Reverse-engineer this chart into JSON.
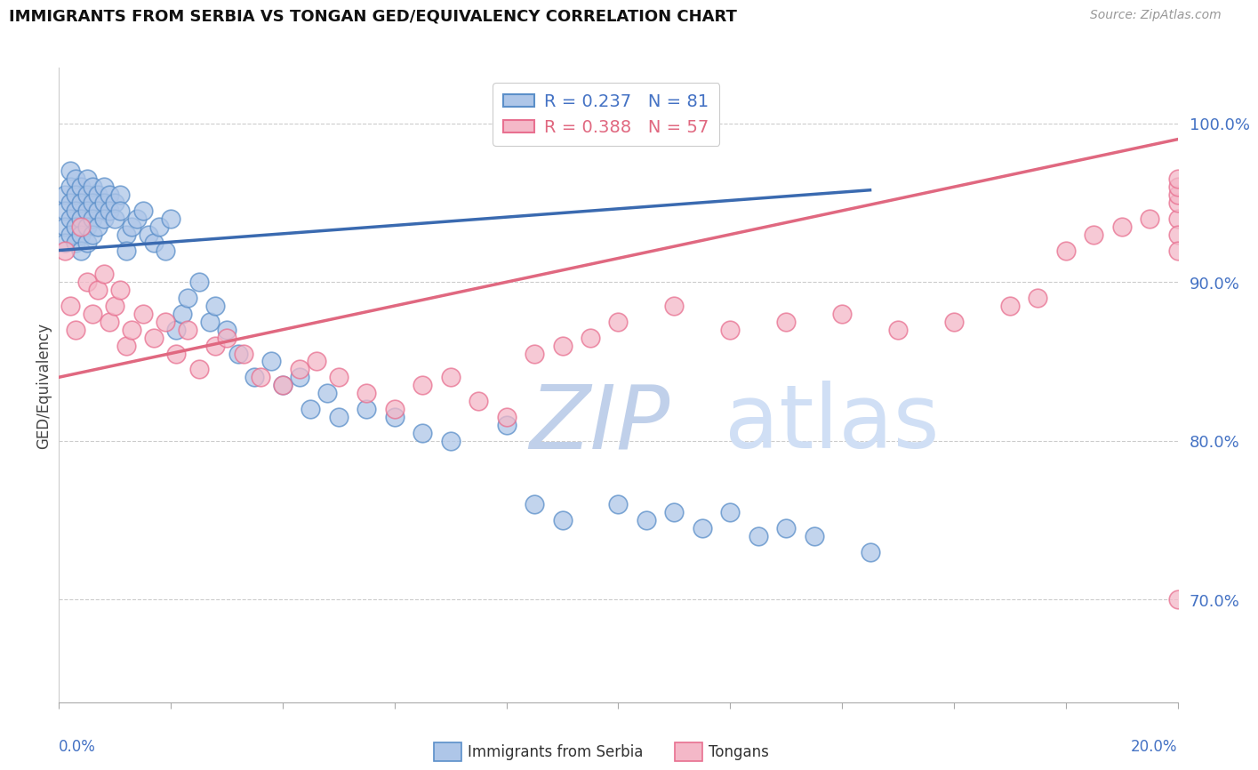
{
  "title": "IMMIGRANTS FROM SERBIA VS TONGAN GED/EQUIVALENCY CORRELATION CHART",
  "source": "Source: ZipAtlas.com",
  "ylabel": "GED/Equivalency",
  "ytick_labels": [
    "70.0%",
    "80.0%",
    "90.0%",
    "100.0%"
  ],
  "ytick_values": [
    0.7,
    0.8,
    0.9,
    1.0
  ],
  "xlim": [
    0.0,
    0.2
  ],
  "ylim": [
    0.635,
    1.035
  ],
  "legend_blue_r": "0.237",
  "legend_blue_n": "81",
  "legend_pink_r": "0.388",
  "legend_pink_n": "57",
  "color_blue_face": "#aec6e8",
  "color_pink_face": "#f4b8c8",
  "color_blue_edge": "#5b8fc9",
  "color_pink_edge": "#e87090",
  "color_blue_line": "#3a6ab0",
  "color_pink_line": "#e06880",
  "color_blue_label": "#4472c4",
  "color_pink_label": "#e06880",
  "watermark_zip_color": "#c5d5ee",
  "watermark_atlas_color": "#d0dff5",
  "serbia_x": [
    0.001,
    0.001,
    0.001,
    0.001,
    0.002,
    0.002,
    0.002,
    0.002,
    0.002,
    0.003,
    0.003,
    0.003,
    0.003,
    0.003,
    0.004,
    0.004,
    0.004,
    0.004,
    0.004,
    0.005,
    0.005,
    0.005,
    0.005,
    0.005,
    0.006,
    0.006,
    0.006,
    0.006,
    0.007,
    0.007,
    0.007,
    0.008,
    0.008,
    0.008,
    0.009,
    0.009,
    0.01,
    0.01,
    0.011,
    0.011,
    0.012,
    0.012,
    0.013,
    0.014,
    0.015,
    0.016,
    0.017,
    0.018,
    0.019,
    0.02,
    0.021,
    0.022,
    0.023,
    0.025,
    0.027,
    0.028,
    0.03,
    0.032,
    0.035,
    0.038,
    0.04,
    0.043,
    0.045,
    0.048,
    0.05,
    0.055,
    0.06,
    0.065,
    0.07,
    0.08,
    0.085,
    0.09,
    0.1,
    0.105,
    0.11,
    0.115,
    0.12,
    0.125,
    0.13,
    0.135,
    0.145
  ],
  "serbia_y": [
    0.955,
    0.945,
    0.935,
    0.925,
    0.97,
    0.96,
    0.95,
    0.94,
    0.93,
    0.965,
    0.955,
    0.945,
    0.935,
    0.925,
    0.96,
    0.95,
    0.94,
    0.93,
    0.92,
    0.965,
    0.955,
    0.945,
    0.935,
    0.925,
    0.96,
    0.95,
    0.94,
    0.93,
    0.955,
    0.945,
    0.935,
    0.96,
    0.95,
    0.94,
    0.955,
    0.945,
    0.95,
    0.94,
    0.955,
    0.945,
    0.93,
    0.92,
    0.935,
    0.94,
    0.945,
    0.93,
    0.925,
    0.935,
    0.92,
    0.94,
    0.87,
    0.88,
    0.89,
    0.9,
    0.875,
    0.885,
    0.87,
    0.855,
    0.84,
    0.85,
    0.835,
    0.84,
    0.82,
    0.83,
    0.815,
    0.82,
    0.815,
    0.805,
    0.8,
    0.81,
    0.76,
    0.75,
    0.76,
    0.75,
    0.755,
    0.745,
    0.755,
    0.74,
    0.745,
    0.74,
    0.73
  ],
  "tongan_x": [
    0.001,
    0.002,
    0.003,
    0.004,
    0.005,
    0.006,
    0.007,
    0.008,
    0.009,
    0.01,
    0.011,
    0.012,
    0.013,
    0.015,
    0.017,
    0.019,
    0.021,
    0.023,
    0.025,
    0.028,
    0.03,
    0.033,
    0.036,
    0.04,
    0.043,
    0.046,
    0.05,
    0.055,
    0.06,
    0.065,
    0.07,
    0.075,
    0.08,
    0.085,
    0.09,
    0.095,
    0.1,
    0.11,
    0.12,
    0.13,
    0.14,
    0.15,
    0.16,
    0.17,
    0.175,
    0.18,
    0.185,
    0.19,
    0.195,
    0.2,
    0.2,
    0.2,
    0.2,
    0.2,
    0.2,
    0.2,
    0.2
  ],
  "tongan_y": [
    0.92,
    0.885,
    0.87,
    0.935,
    0.9,
    0.88,
    0.895,
    0.905,
    0.875,
    0.885,
    0.895,
    0.86,
    0.87,
    0.88,
    0.865,
    0.875,
    0.855,
    0.87,
    0.845,
    0.86,
    0.865,
    0.855,
    0.84,
    0.835,
    0.845,
    0.85,
    0.84,
    0.83,
    0.82,
    0.835,
    0.84,
    0.825,
    0.815,
    0.855,
    0.86,
    0.865,
    0.875,
    0.885,
    0.87,
    0.875,
    0.88,
    0.87,
    0.875,
    0.885,
    0.89,
    0.92,
    0.93,
    0.935,
    0.94,
    0.94,
    0.95,
    0.955,
    0.93,
    0.92,
    0.7,
    0.96,
    0.965
  ],
  "serbia_line_x": [
    0.0,
    0.145
  ],
  "serbia_line_y": [
    0.92,
    0.958
  ],
  "tongan_line_x": [
    0.0,
    0.2
  ],
  "tongan_line_y": [
    0.84,
    0.99
  ]
}
